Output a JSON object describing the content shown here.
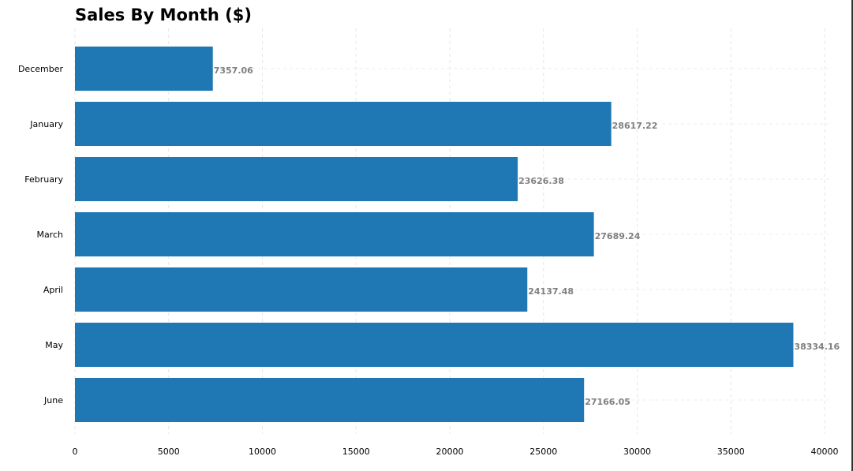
{
  "chart_data": {
    "type": "bar",
    "orientation": "horizontal",
    "title": "Sales By Month ($)",
    "xlabel": "",
    "ylabel": "",
    "categories": [
      "December",
      "January",
      "February",
      "March",
      "April",
      "May",
      "June"
    ],
    "values": [
      7357.06,
      28617.22,
      23626.38,
      27689.24,
      24137.48,
      38334.16,
      27166.05
    ],
    "value_labels": [
      "7357.06",
      "28617.22",
      "23626.38",
      "27689.24",
      "24137.48",
      "38334.16",
      "27166.05"
    ],
    "xlim": [
      0,
      40000
    ],
    "xticks": [
      0,
      5000,
      10000,
      15000,
      20000,
      25000,
      30000,
      35000,
      40000
    ],
    "grid": true,
    "bar_color": "#1f77b4",
    "label_color": "#808080"
  }
}
